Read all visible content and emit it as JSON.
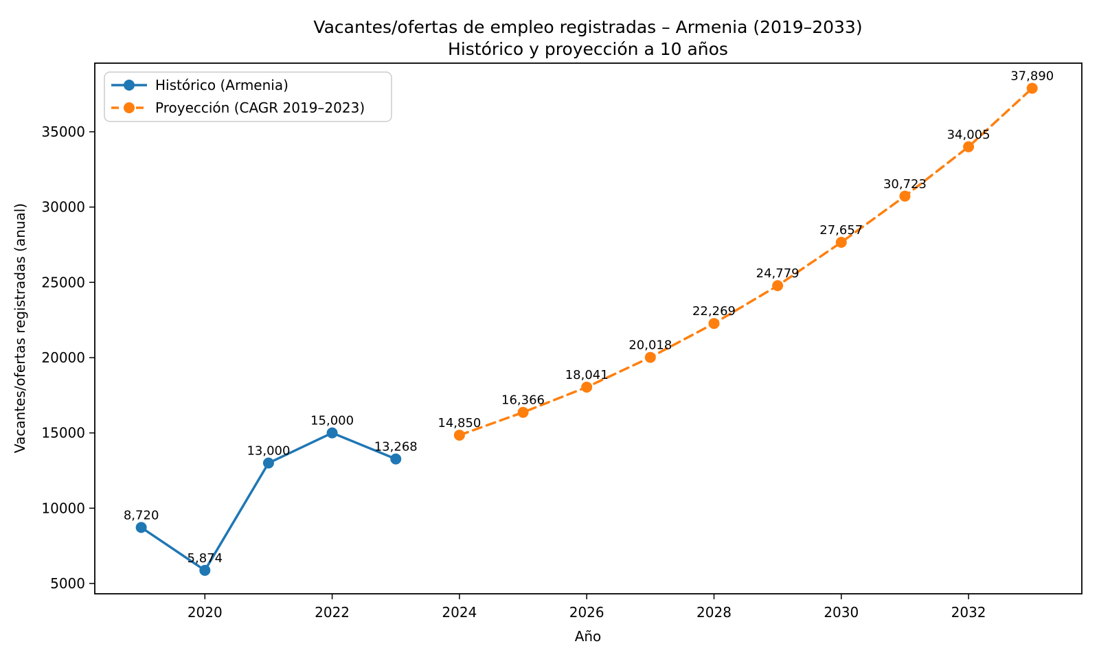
{
  "chart_data": {
    "type": "line",
    "title": "Vacantes/ofertas de empleo registradas – Armenia (2019–2033)",
    "subtitle": "Histórico y proyección a 10 años",
    "xlabel": "Año",
    "ylabel": "Vacantes/ofertas registradas (anual)",
    "xlim": [
      2018.27,
      2033.78
    ],
    "ylim": [
      4316,
      39557
    ],
    "x_ticks": [
      2020,
      2022,
      2024,
      2026,
      2028,
      2030,
      2032
    ],
    "y_ticks": [
      5000,
      10000,
      15000,
      20000,
      25000,
      30000,
      35000
    ],
    "grid": false,
    "legend_position": "upper-left",
    "colors": {
      "historical": "#1f77b4",
      "projection": "#ff7f0e",
      "text": "#000000",
      "spine": "#000000",
      "legend_border": "#cccccc",
      "legend_background": "#ffffff"
    },
    "series": [
      {
        "name": "Histórico (Armenia)",
        "color": "#1f77b4",
        "line_style": "solid",
        "marker": "circle",
        "x": [
          2019,
          2020,
          2021,
          2022,
          2023
        ],
        "values": [
          8720,
          5874,
          13000,
          15000,
          13268
        ],
        "labels": [
          "8,720",
          "5,874",
          "13,000",
          "15,000",
          "13,268"
        ]
      },
      {
        "name": "Proyección (CAGR 2019–2023)",
        "color": "#ff7f0e",
        "line_style": "dashed",
        "marker": "circle",
        "x": [
          2024,
          2025,
          2026,
          2027,
          2028,
          2029,
          2030,
          2031,
          2032,
          2033
        ],
        "values": [
          14850,
          16366,
          18041,
          20018,
          22269,
          24779,
          27657,
          30723,
          34005,
          37890
        ],
        "labels": [
          "14,850",
          "16,366",
          "18,041",
          "20,018",
          "22,269",
          "24,779",
          "27,657",
          "30,723",
          "34,005",
          "37,890"
        ]
      }
    ]
  }
}
